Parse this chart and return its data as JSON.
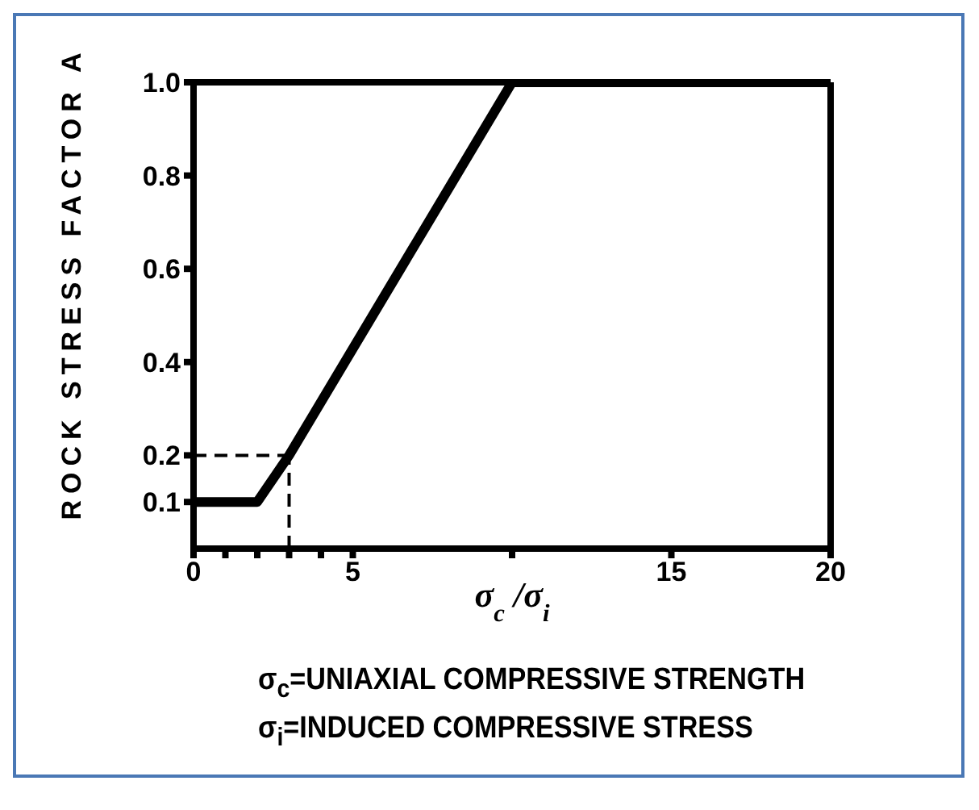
{
  "chart_data": {
    "type": "line",
    "xlabel": "σ$_{c}$/σ$_{i}$",
    "ylabel": "ROCK STRESS FACTOR A",
    "x": [
      0,
      2,
      3,
      10,
      20
    ],
    "series": [
      {
        "color": "#000000",
        "values": [
          0.1,
          0.1,
          0.2,
          1.0,
          1.0
        ]
      }
    ],
    "xlim": [
      0,
      20
    ],
    "xticks": [
      0,
      {
        "value": 1,
        "label": null
      },
      {
        "value": 2,
        "label": null
      },
      {
        "value": 3,
        "label": null
      },
      {
        "value": 4,
        "label": null
      },
      5,
      {
        "value": 10,
        "label": null
      },
      15,
      20
    ],
    "ylim": [
      0,
      1
    ],
    "yticks": [
      0.1,
      0.2,
      0.4,
      0.6,
      0.8,
      {
        "value": 1,
        "label": "1.0"
      }
    ],
    "ref_lines": [
      {
        "axis": "y",
        "value": 0.2,
        "line_style": "dashed",
        "color": "#000000"
      },
      {
        "axis": "x",
        "value": 3,
        "line_style": "dashed",
        "color": "#000000"
      }
    ],
    "marker": "none",
    "line_style": "solid",
    "grid": false,
    "legend": false,
    "annotations": [
      "σ$_{c}$=UNIAXIAL COMPRESSIVE STRENGTH",
      "σ$_{i}$=INDUCED COMPRESSIVE STRESS"
    ]
  }
}
